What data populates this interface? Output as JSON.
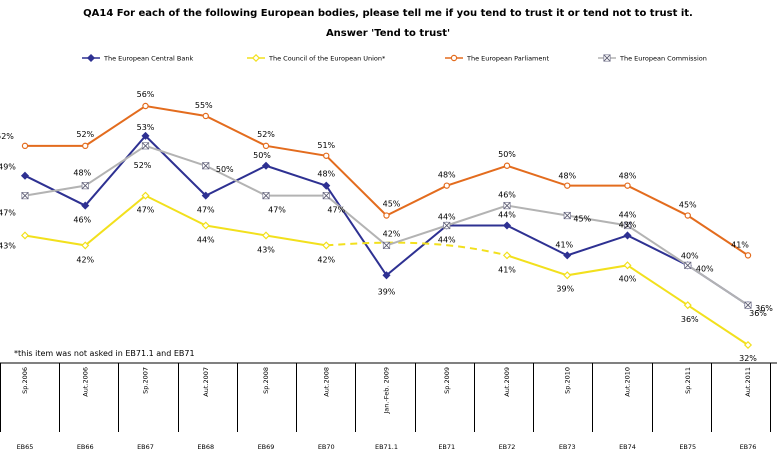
{
  "chart_data": {
    "type": "line",
    "title": "QA14 For each of the following European bodies, please tell me if you tend to trust it or tend not to trust it.",
    "subtitle": "Answer 'Tend to trust'",
    "categories": [
      "Sp.2006",
      "Aut.2006",
      "Sp.2007",
      "Aut.2007",
      "Sp.2008",
      "Aut.2008",
      "Jan.-Feb. 2009",
      "Sp.2009",
      "Aut.2009",
      "Sp.2010",
      "Aut.2010",
      "Sp.2011",
      "Aut.2011"
    ],
    "waves": [
      "EB65",
      "EB66",
      "EB67",
      "EB68",
      "EB69",
      "EB70",
      "EB71.1",
      "EB71",
      "EB72",
      "EB73",
      "EB74",
      "EB75",
      "EB76"
    ],
    "ylim": [
      30,
      60
    ],
    "legend_position": "top",
    "series": [
      {
        "name": "The European Central Bank",
        "color": "#2e3192",
        "marker": "diamond",
        "values": [
          49,
          46,
          53,
          47,
          50,
          48,
          39,
          44,
          44,
          41,
          43,
          40,
          36
        ]
      },
      {
        "name": "The Council of the European Union*",
        "color": "#f2e01d",
        "marker": "diamond-open",
        "values": [
          43,
          42,
          47,
          44,
          43,
          42,
          null,
          null,
          41,
          39,
          40,
          36,
          32
        ]
      },
      {
        "name": "The European Parliament",
        "color": "#e36c1e",
        "marker": "circle",
        "values": [
          52,
          52,
          56,
          55,
          52,
          51,
          45,
          48,
          50,
          48,
          48,
          45,
          41
        ]
      },
      {
        "name": "The European Commission",
        "color": "#b3b3b3",
        "marker": "square-x",
        "values": [
          47,
          48,
          52,
          50,
          47,
          47,
          42,
          44,
          46,
          45,
          44,
          40,
          36
        ]
      }
    ],
    "footnote": "*this item was not asked in EB71.1 and EB71"
  }
}
